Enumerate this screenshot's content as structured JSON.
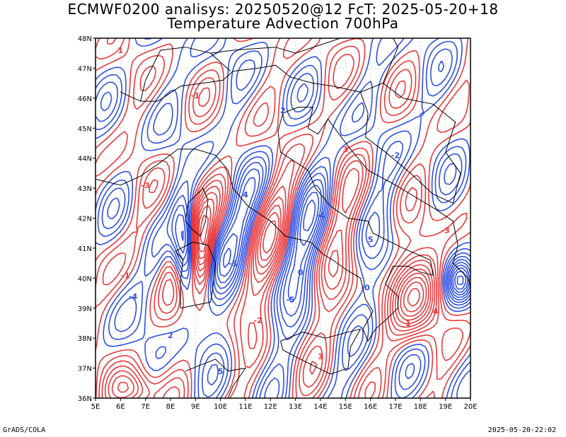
{
  "title": {
    "line1": "ECMWF0200 analisys: 20250520@12 FcT: 2025-05-20+18",
    "line2": "Temperature Advection 700hPa"
  },
  "axes": {
    "lat_labels": [
      "48N",
      "47N",
      "46N",
      "45N",
      "44N",
      "43N",
      "42N",
      "41N",
      "40N",
      "39N",
      "38N",
      "37N",
      "36N"
    ],
    "lon_labels": [
      "5E",
      "6E",
      "7E",
      "8E",
      "9E",
      "10E",
      "11E",
      "12E",
      "13E",
      "14E",
      "15E",
      "16E",
      "17E",
      "18E",
      "19E",
      "20E"
    ],
    "lat_range": [
      36,
      48
    ],
    "lon_range": [
      5,
      20
    ],
    "grid": "dotted"
  },
  "legend": {
    "positive_color": "#e8383b",
    "negative_color": "#2e4fe0",
    "coast_color": "#000000"
  },
  "contour_labels": [
    "1",
    "-1",
    "2",
    "-2",
    "3",
    "-3",
    "4",
    "-4",
    "5",
    "-5",
    "0",
    "-0"
  ],
  "footer": {
    "left": "GrADS/COLA",
    "right": "2025-05-20-22:02"
  }
}
